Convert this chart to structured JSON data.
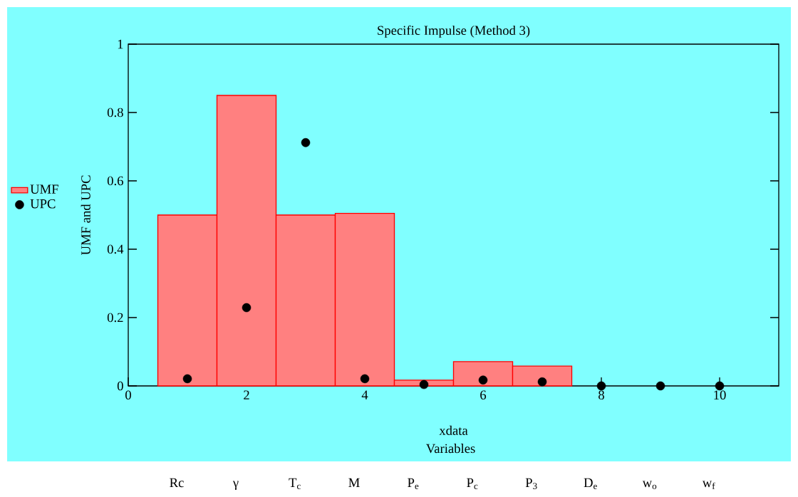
{
  "chart_data": {
    "type": "bar",
    "title": "Specific Impulse (Method 3)",
    "xlabel": "xdata",
    "ylabel": "UMF and UPC",
    "x": [
      1,
      2,
      3,
      4,
      5,
      6,
      7,
      8,
      9,
      10
    ],
    "series": [
      {
        "name": "UMF",
        "color": "#ff8080",
        "x": [
          1,
          2,
          3,
          4,
          5,
          6,
          7
        ],
        "values": [
          0.5,
          0.85,
          0.5,
          0.505,
          0.017,
          0.071,
          0.058
        ]
      },
      {
        "name": "UPC",
        "type": "scatter",
        "color": "#000000",
        "marker": "circle",
        "values": [
          0.021,
          0.229,
          0.712,
          0.021,
          0.004,
          0.017,
          0.012,
          0,
          0,
          0
        ]
      }
    ],
    "xlim": [
      0,
      11
    ],
    "ylim": [
      0,
      1
    ],
    "xticks": [
      0,
      2,
      4,
      6,
      8,
      10
    ],
    "yticks": [
      0,
      0.2,
      0.4,
      0.6,
      0.8,
      1
    ],
    "legend": "left",
    "annotations": [
      "Variables",
      "Rc",
      "γ",
      "T$_{c}$",
      "M",
      "P$_{e}$",
      "P$_{c}$",
      "P$_{3}$",
      "D$_{e}$",
      "w$_{o}$",
      "w$_{f}$"
    ]
  }
}
